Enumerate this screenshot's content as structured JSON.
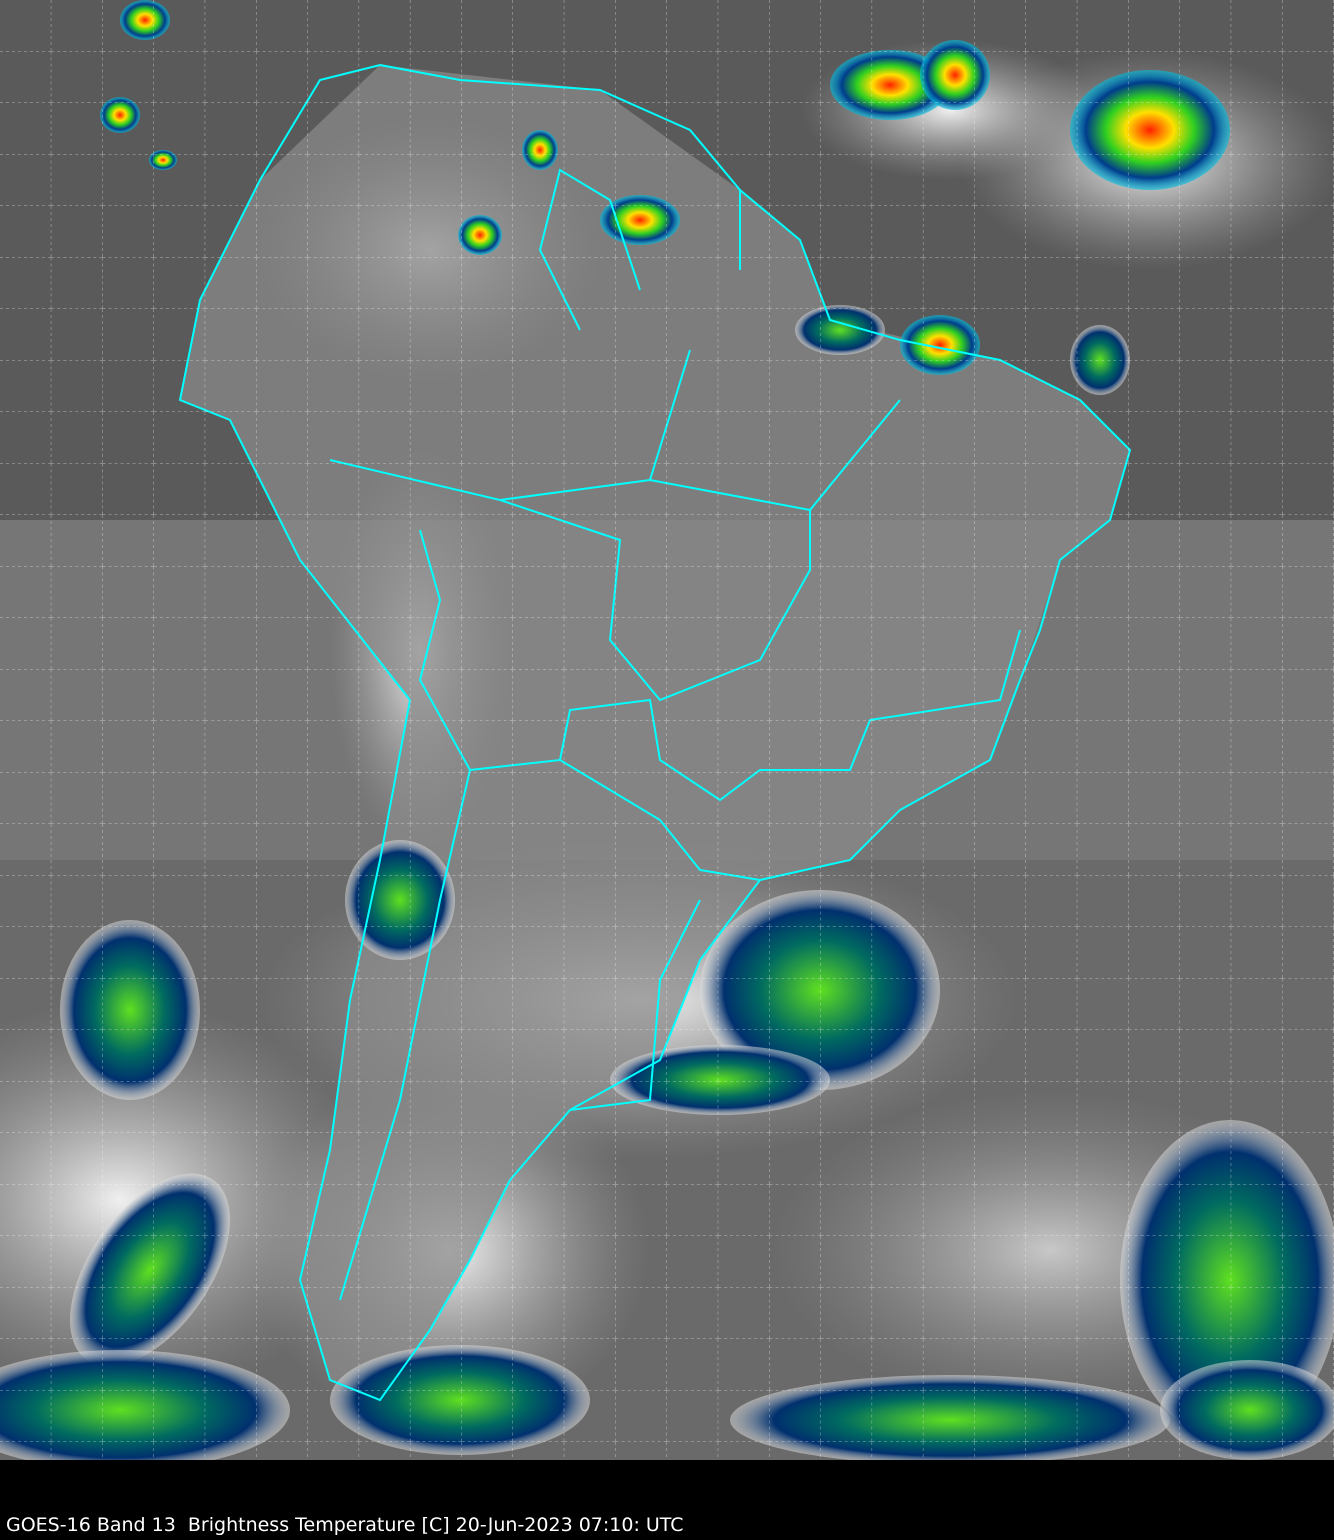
{
  "caption": "GOES-16 Band 13  Brightness Temperature [C] 20-Jun-2023 07:10: UTC",
  "colors": {
    "background": "#000000",
    "boundaries": "#00ffff",
    "gridlines": "#ffffff",
    "cloud_cold": "#00ff40",
    "cloud_very_cold": "#ff2000",
    "cloud_mid": "#003c8c",
    "land_sea": "#6e6e6e"
  }
}
